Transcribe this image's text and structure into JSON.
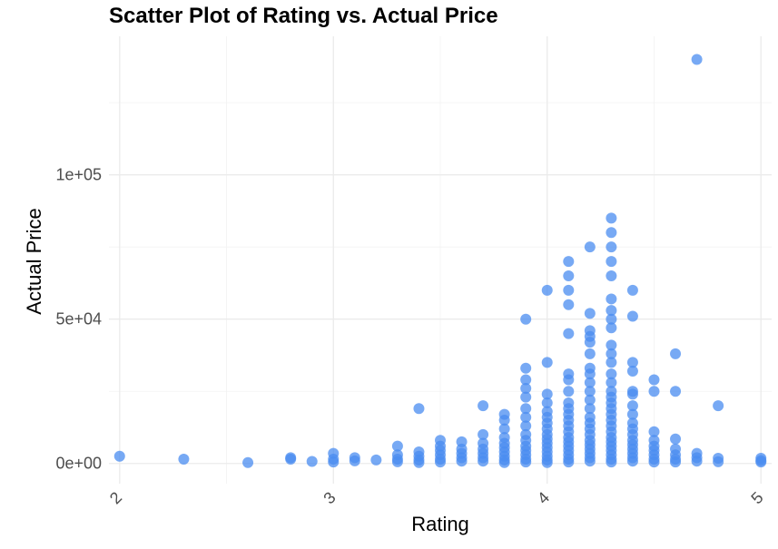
{
  "chart_data": {
    "type": "scatter",
    "title": "Scatter Plot of Rating vs. Actual Price",
    "xlabel": "Rating",
    "ylabel": "Actual Price",
    "xlim": [
      1.95,
      5.05
    ],
    "ylim": [
      -7000,
      148000
    ],
    "x_ticks": [
      2,
      3,
      4,
      5
    ],
    "x_tick_labels": [
      "2",
      "3",
      "4",
      "5"
    ],
    "y_ticks": [
      0,
      50000,
      100000
    ],
    "y_tick_labels": [
      "0e+00",
      "5e+04",
      "1e+05"
    ],
    "grid": true,
    "point_color": "#4a8cf0",
    "points": [
      [
        2.0,
        2500
      ],
      [
        2.3,
        1500
      ],
      [
        2.6,
        300
      ],
      [
        2.8,
        2000
      ],
      [
        2.8,
        1500
      ],
      [
        2.9,
        700
      ],
      [
        3.0,
        3500
      ],
      [
        3.0,
        1500
      ],
      [
        3.0,
        500
      ],
      [
        3.1,
        2000
      ],
      [
        3.1,
        900
      ],
      [
        3.2,
        1200
      ],
      [
        3.3,
        6000
      ],
      [
        3.3,
        3000
      ],
      [
        3.3,
        1500
      ],
      [
        3.3,
        600
      ],
      [
        3.4,
        19000
      ],
      [
        3.4,
        4000
      ],
      [
        3.4,
        2500
      ],
      [
        3.4,
        1200
      ],
      [
        3.4,
        300
      ],
      [
        3.5,
        8000
      ],
      [
        3.5,
        6000
      ],
      [
        3.5,
        4500
      ],
      [
        3.5,
        3000
      ],
      [
        3.5,
        1500
      ],
      [
        3.5,
        500
      ],
      [
        3.6,
        7500
      ],
      [
        3.6,
        5000
      ],
      [
        3.6,
        3500
      ],
      [
        3.6,
        2000
      ],
      [
        3.6,
        800
      ],
      [
        3.7,
        20000
      ],
      [
        3.7,
        10000
      ],
      [
        3.7,
        7000
      ],
      [
        3.7,
        5000
      ],
      [
        3.7,
        3500
      ],
      [
        3.7,
        2000
      ],
      [
        3.7,
        800
      ],
      [
        3.8,
        17000
      ],
      [
        3.8,
        15000
      ],
      [
        3.8,
        12000
      ],
      [
        3.8,
        9000
      ],
      [
        3.8,
        7000
      ],
      [
        3.8,
        5500
      ],
      [
        3.8,
        4000
      ],
      [
        3.8,
        2500
      ],
      [
        3.8,
        1200
      ],
      [
        3.8,
        300
      ],
      [
        3.9,
        50000
      ],
      [
        3.9,
        33000
      ],
      [
        3.9,
        29000
      ],
      [
        3.9,
        26000
      ],
      [
        3.9,
        23000
      ],
      [
        3.9,
        19000
      ],
      [
        3.9,
        16000
      ],
      [
        3.9,
        13000
      ],
      [
        3.9,
        10000
      ],
      [
        3.9,
        8000
      ],
      [
        3.9,
        6000
      ],
      [
        3.9,
        4500
      ],
      [
        3.9,
        3000
      ],
      [
        3.9,
        1500
      ],
      [
        3.9,
        500
      ],
      [
        4.0,
        60000
      ],
      [
        4.0,
        35000
      ],
      [
        4.0,
        24000
      ],
      [
        4.0,
        21000
      ],
      [
        4.0,
        18000
      ],
      [
        4.0,
        16000
      ],
      [
        4.0,
        14000
      ],
      [
        4.0,
        12000
      ],
      [
        4.0,
        10000
      ],
      [
        4.0,
        8500
      ],
      [
        4.0,
        7000
      ],
      [
        4.0,
        5500
      ],
      [
        4.0,
        4000
      ],
      [
        4.0,
        2500
      ],
      [
        4.0,
        1200
      ],
      [
        4.0,
        300
      ],
      [
        4.1,
        70000
      ],
      [
        4.1,
        65000
      ],
      [
        4.1,
        60000
      ],
      [
        4.1,
        55000
      ],
      [
        4.1,
        45000
      ],
      [
        4.1,
        31000
      ],
      [
        4.1,
        29000
      ],
      [
        4.1,
        25000
      ],
      [
        4.1,
        21000
      ],
      [
        4.1,
        19000
      ],
      [
        4.1,
        17000
      ],
      [
        4.1,
        15000
      ],
      [
        4.1,
        13000
      ],
      [
        4.1,
        11000
      ],
      [
        4.1,
        9000
      ],
      [
        4.1,
        7500
      ],
      [
        4.1,
        6000
      ],
      [
        4.1,
        4500
      ],
      [
        4.1,
        3000
      ],
      [
        4.1,
        1500
      ],
      [
        4.1,
        500
      ],
      [
        4.2,
        75000
      ],
      [
        4.2,
        52000
      ],
      [
        4.2,
        46000
      ],
      [
        4.2,
        44000
      ],
      [
        4.2,
        42000
      ],
      [
        4.2,
        38000
      ],
      [
        4.2,
        33000
      ],
      [
        4.2,
        31000
      ],
      [
        4.2,
        28000
      ],
      [
        4.2,
        25000
      ],
      [
        4.2,
        22000
      ],
      [
        4.2,
        19000
      ],
      [
        4.2,
        16000
      ],
      [
        4.2,
        14000
      ],
      [
        4.2,
        12000
      ],
      [
        4.2,
        10000
      ],
      [
        4.2,
        8000
      ],
      [
        4.2,
        6500
      ],
      [
        4.2,
        5000
      ],
      [
        4.2,
        3500
      ],
      [
        4.2,
        2000
      ],
      [
        4.2,
        800
      ],
      [
        4.3,
        85000
      ],
      [
        4.3,
        80000
      ],
      [
        4.3,
        75000
      ],
      [
        4.3,
        70000
      ],
      [
        4.3,
        65000
      ],
      [
        4.3,
        57000
      ],
      [
        4.3,
        53000
      ],
      [
        4.3,
        50000
      ],
      [
        4.3,
        47000
      ],
      [
        4.3,
        41000
      ],
      [
        4.3,
        38000
      ],
      [
        4.3,
        35000
      ],
      [
        4.3,
        31000
      ],
      [
        4.3,
        28000
      ],
      [
        4.3,
        25000
      ],
      [
        4.3,
        23000
      ],
      [
        4.3,
        21000
      ],
      [
        4.3,
        19000
      ],
      [
        4.3,
        17000
      ],
      [
        4.3,
        15000
      ],
      [
        4.3,
        13000
      ],
      [
        4.3,
        11000
      ],
      [
        4.3,
        9000
      ],
      [
        4.3,
        7500
      ],
      [
        4.3,
        6000
      ],
      [
        4.3,
        4500
      ],
      [
        4.3,
        3000
      ],
      [
        4.3,
        1500
      ],
      [
        4.3,
        500
      ],
      [
        4.4,
        60000
      ],
      [
        4.4,
        51000
      ],
      [
        4.4,
        35000
      ],
      [
        4.4,
        32000
      ],
      [
        4.4,
        25000
      ],
      [
        4.4,
        24000
      ],
      [
        4.4,
        20000
      ],
      [
        4.4,
        17000
      ],
      [
        4.4,
        14000
      ],
      [
        4.4,
        12000
      ],
      [
        4.4,
        10000
      ],
      [
        4.4,
        8000
      ],
      [
        4.4,
        6500
      ],
      [
        4.4,
        5000
      ],
      [
        4.4,
        3500
      ],
      [
        4.4,
        2000
      ],
      [
        4.4,
        800
      ],
      [
        4.5,
        29000
      ],
      [
        4.5,
        25000
      ],
      [
        4.5,
        11000
      ],
      [
        4.5,
        8000
      ],
      [
        4.5,
        6000
      ],
      [
        4.5,
        4500
      ],
      [
        4.5,
        3000
      ],
      [
        4.5,
        1500
      ],
      [
        4.5,
        500
      ],
      [
        4.6,
        38000
      ],
      [
        4.6,
        25000
      ],
      [
        4.6,
        8500
      ],
      [
        4.6,
        5000
      ],
      [
        4.6,
        3000
      ],
      [
        4.6,
        1500
      ],
      [
        4.6,
        500
      ],
      [
        4.7,
        140000
      ],
      [
        4.7,
        3500
      ],
      [
        4.7,
        2000
      ],
      [
        4.7,
        800
      ],
      [
        4.8,
        20000
      ],
      [
        4.8,
        1800
      ],
      [
        4.8,
        600
      ],
      [
        5.0,
        1800
      ],
      [
        5.0,
        1000
      ],
      [
        5.0,
        500
      ]
    ]
  }
}
